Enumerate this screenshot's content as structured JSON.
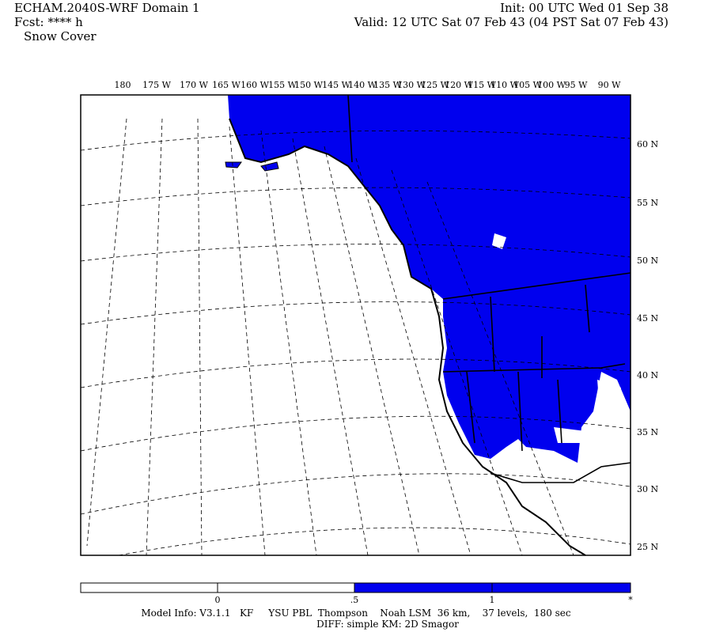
{
  "header": {
    "title": "ECHAM.2040S-WRF Domain 1",
    "fcst": "Fcst: **** h",
    "field": "Snow Cover",
    "init": "Init: 00 UTC Wed 01 Sep 38",
    "valid": "Valid: 12 UTC Sat 07 Feb 43 (04 PST Sat 07 Feb 43)"
  },
  "map": {
    "lon_labels": [
      "180",
      "175 W",
      "170 W",
      "165 W",
      "160 W",
      "155 W",
      "150 W",
      "145 W",
      "140 W",
      "135 W",
      "130 W",
      "125 W",
      "120 W",
      "115 W",
      "110 W",
      "105 W",
      "100 W",
      "95 W",
      "90 W"
    ],
    "lat_labels": [
      "60 N",
      "55 N",
      "50 N",
      "45 N",
      "40 N",
      "35 N",
      "30 N",
      "25 N"
    ]
  },
  "colorbar": {
    "labels": [
      "0",
      ".5",
      "1",
      "*"
    ]
  },
  "footer": {
    "model_info": "Model Info: V3.1.1   KF     YSU PBL  Thompson    Noah LSM  36 km,    37 levels,  180 sec",
    "diff": "DIFF: simple KM: 2D Smagor"
  }
}
